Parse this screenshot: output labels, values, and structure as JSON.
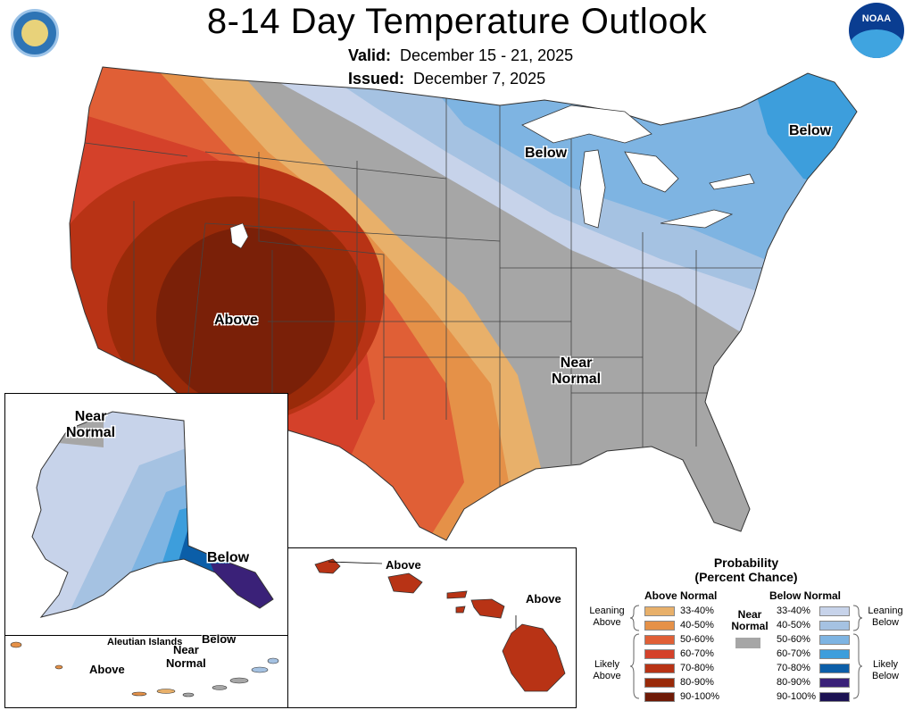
{
  "title": "8-14 Day Temperature Outlook",
  "valid": {
    "label": "Valid:",
    "value": "December 15 - 21, 2025"
  },
  "issued": {
    "label": "Issued:",
    "value": "December 7, 2025"
  },
  "logo": {
    "noaa_text": "NOAA"
  },
  "labels": {
    "conus_below_great_lakes": "Below",
    "conus_below_northeast": "Below",
    "conus_above_west": "Above",
    "conus_near_normal_line1": "Near",
    "conus_near_normal_line2": "Normal",
    "alaska_near_line1": "Near",
    "alaska_near_line2": "Normal",
    "alaska_below": "Below",
    "aleutian_islands": "Aleutian Islands",
    "aleutian_below": "Below",
    "aleutian_near_line1": "Near",
    "aleutian_near_line2": "Normal",
    "aleutian_above": "Above",
    "hawaii_above_1": "Above",
    "hawaii_above_2": "Above"
  },
  "legend": {
    "title_line1": "Probability",
    "title_line2": "(Percent Chance)",
    "above_heading": "Above Normal",
    "below_heading": "Below Normal",
    "near_line1": "Near",
    "near_line2": "Normal",
    "near_color": "#a6a6a6",
    "leaning_above_line1": "Leaning",
    "leaning_above_line2": "Above",
    "likely_above_line1": "Likely",
    "likely_above_line2": "Above",
    "leaning_below_line1": "Leaning",
    "leaning_below_line2": "Below",
    "likely_below_line1": "Likely",
    "likely_below_line2": "Below",
    "above": [
      {
        "range": "33-40%",
        "color": "#e8b06a"
      },
      {
        "range": "40-50%",
        "color": "#e59148"
      },
      {
        "range": "50-60%",
        "color": "#e05f36"
      },
      {
        "range": "60-70%",
        "color": "#d4412a"
      },
      {
        "range": "70-80%",
        "color": "#b83315"
      },
      {
        "range": "80-90%",
        "color": "#992a09"
      },
      {
        "range": "90-100%",
        "color": "#6e1a06"
      }
    ],
    "below": [
      {
        "range": "33-40%",
        "color": "#c7d3ea"
      },
      {
        "range": "40-50%",
        "color": "#a5c2e2"
      },
      {
        "range": "50-60%",
        "color": "#7eb4e2"
      },
      {
        "range": "60-70%",
        "color": "#3d9edc"
      },
      {
        "range": "70-80%",
        "color": "#0b5ea8"
      },
      {
        "range": "80-90%",
        "color": "#3a2178"
      },
      {
        "range": "90-100%",
        "color": "#1c1252"
      }
    ]
  }
}
